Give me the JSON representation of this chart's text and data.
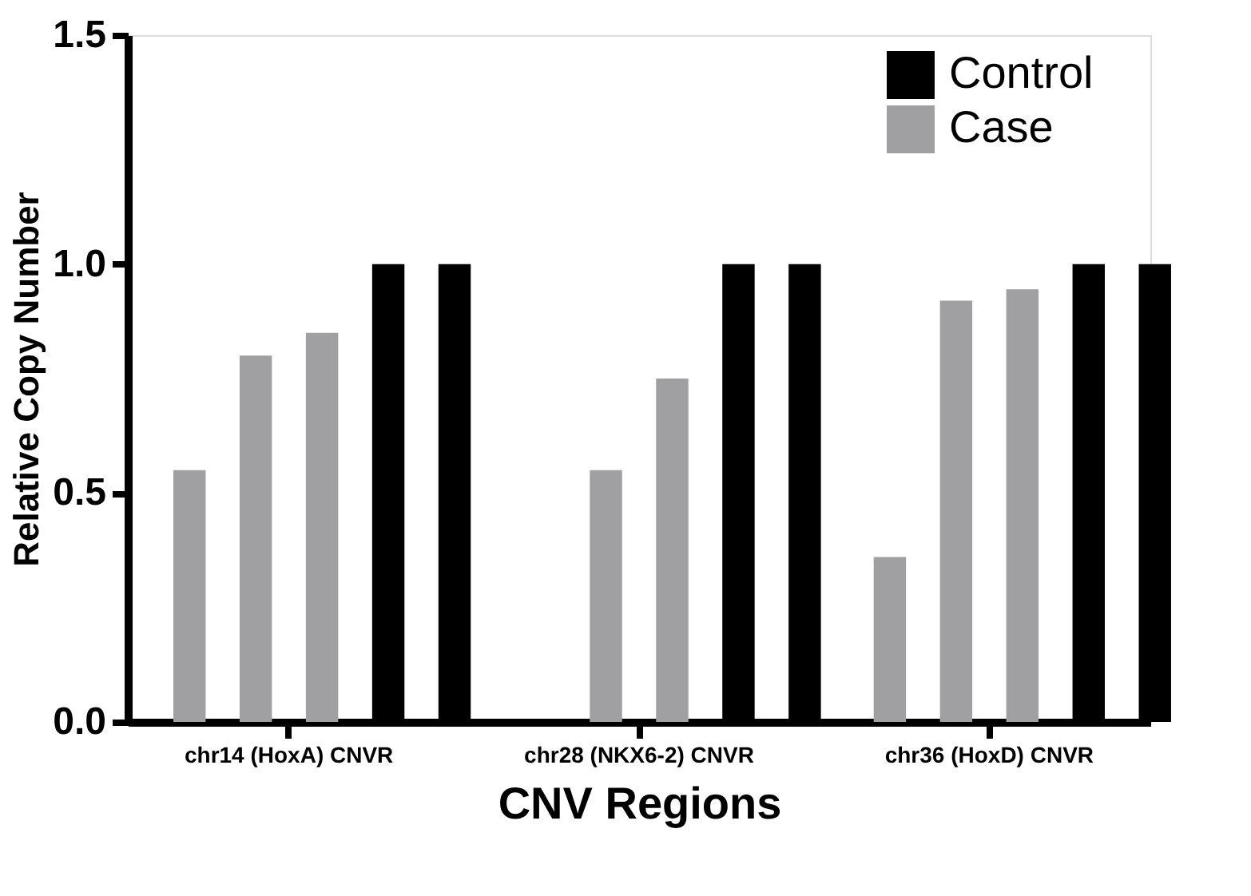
{
  "chart_data": {
    "type": "bar",
    "xlabel": "CNV Regions",
    "ylabel": "Relative Copy Number",
    "categories": [
      "chr14 (HoxA) CNVR",
      "chr28 (NKX6-2) CNVR",
      "chr36 (HoxD) CNVR"
    ],
    "series": [
      {
        "name": "Case",
        "color": "#a0a0a3",
        "values": [
          0.55,
          null,
          0.36
        ]
      },
      {
        "color": "#a0a0a3",
        "values": [
          0.8,
          0.55,
          0.92
        ]
      },
      {
        "color": "#a0a0a3",
        "values": [
          0.85,
          0.75,
          0.945
        ]
      },
      {
        "name": "Control",
        "color": "#000000",
        "values": [
          1.0,
          1.0,
          1.0
        ]
      },
      {
        "color": "#000000",
        "values": [
          1.0,
          1.0,
          1.0
        ]
      }
    ],
    "ylim": [
      0,
      1.5
    ],
    "yticks": [
      {
        "value": 0,
        "label": "0.0"
      },
      0.5,
      {
        "value": 1,
        "label": "1.0"
      },
      1.5
    ],
    "grid": false,
    "legend": "top right"
  }
}
